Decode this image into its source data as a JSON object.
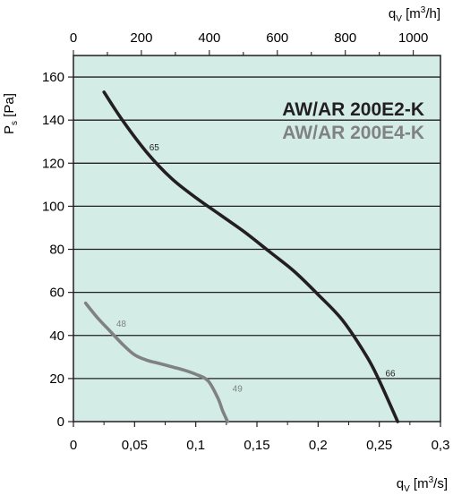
{
  "chart_data": {
    "type": "line",
    "x_bottom": {
      "label_main": "q",
      "label_sub": "V",
      "label_unit": "[m",
      "label_sup": "3",
      "label_tail": "/s]",
      "range": [
        0,
        0.3
      ],
      "ticks": [
        0,
        0.05,
        0.1,
        0.15,
        0.2,
        0.25,
        0.3
      ],
      "tick_labels": [
        "0",
        "0,05",
        "0,1",
        "0,15",
        "0,2",
        "0,25",
        "0,3"
      ]
    },
    "x_top": {
      "label_main": "q",
      "label_sub": "V",
      "label_unit": "[m",
      "label_sup": "3",
      "label_tail": "/h]",
      "range": [
        0,
        1080
      ],
      "ticks": [
        0,
        200,
        400,
        600,
        800,
        1000
      ],
      "tick_labels": [
        "0",
        "200",
        "400",
        "600",
        "800",
        "1000"
      ]
    },
    "y": {
      "label_main": "P",
      "label_sub": "s",
      "label_unit": "[Pa]",
      "range": [
        0,
        170
      ],
      "ticks": [
        0,
        20,
        40,
        60,
        80,
        100,
        120,
        140,
        160
      ],
      "tick_labels": [
        "0",
        "20",
        "40",
        "60",
        "80",
        "100",
        "120",
        "140",
        "160"
      ]
    },
    "grid": "horizontal",
    "legend_placement": "top-right",
    "background_color": "#d4ece6",
    "series": [
      {
        "name": "AW/AR 200E2-K",
        "color": "#231f20",
        "x": [
          0.025,
          0.04,
          0.06,
          0.08,
          0.1,
          0.12,
          0.14,
          0.16,
          0.18,
          0.2,
          0.22,
          0.24,
          0.25,
          0.265
        ],
        "y": [
          153,
          140,
          125,
          113,
          104,
          96,
          88,
          79,
          70,
          59,
          47,
          30,
          19,
          0
        ],
        "point_labels": [
          {
            "text": "65",
            "x": 0.062,
            "y": 126
          },
          {
            "text": "66",
            "x": 0.255,
            "y": 21
          }
        ]
      },
      {
        "name": "AW/AR 200E4-K",
        "color": "#7f8280",
        "x": [
          0.01,
          0.02,
          0.03,
          0.04,
          0.05,
          0.06,
          0.07,
          0.08,
          0.09,
          0.1,
          0.11,
          0.118,
          0.122,
          0.126
        ],
        "y": [
          55,
          48,
          42,
          36,
          31,
          28.5,
          27,
          25.5,
          24,
          22,
          19,
          11,
          5,
          0
        ],
        "point_labels": [
          {
            "text": "48",
            "x": 0.035,
            "y": 44
          },
          {
            "text": "49",
            "x": 0.13,
            "y": 14
          }
        ]
      }
    ]
  }
}
